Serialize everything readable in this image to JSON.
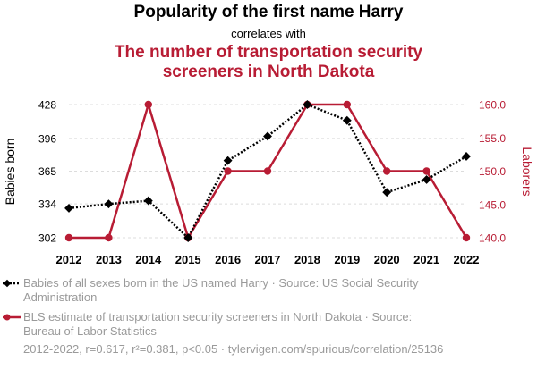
{
  "header": {
    "title": "Popularity of the first name Harry",
    "connector": "correlates with",
    "title2_line1": "The number of transportation security",
    "title2_line2": "screeners in North Dakota"
  },
  "chart_data": {
    "type": "line",
    "x": [
      2012,
      2013,
      2014,
      2015,
      2016,
      2017,
      2018,
      2019,
      2020,
      2021,
      2022
    ],
    "series": [
      {
        "name": "Babies of all sexes born in the US named Harry · Source: US Social Security Administration",
        "axis": "left",
        "color": "#000000",
        "values": [
          330,
          334,
          337,
          302,
          375,
          398,
          428,
          413,
          345,
          357,
          379
        ]
      },
      {
        "name": "BLS estimate of transportation security screeners in North Dakota · Source: Bureau of Labor Statistics",
        "axis": "right",
        "color": "#b81c34",
        "values": [
          140,
          140,
          160,
          140,
          150,
          150,
          160,
          160,
          150,
          150,
          140
        ]
      }
    ],
    "y_left": {
      "label": "Babies born",
      "ticks": [
        "302",
        "334",
        "365",
        "396",
        "428"
      ],
      "range": [
        302,
        428
      ]
    },
    "y_right": {
      "label": "Laborers",
      "ticks": [
        "140.0",
        "145.0",
        "150.0",
        "155.0",
        "160.0"
      ],
      "range": [
        140,
        160
      ]
    },
    "x_ticks": [
      "2012",
      "2013",
      "2014",
      "2015",
      "2016",
      "2017",
      "2018",
      "2019",
      "2020",
      "2021",
      "2022"
    ],
    "grid": true,
    "legend_position": "bottom"
  },
  "legend": {
    "item1_line1": "Babies of all sexes born in the US named Harry · Source: US Social Security",
    "item1_line2": "Administration",
    "item2_line1": "BLS estimate of transportation security screeners in North Dakota · Source:",
    "item2_line2": "Bureau of Labor Statistics"
  },
  "footer": "2012-2022, r=0.617, r²=0.381, p<0.05 · tylervigen.com/spurious/correlation/25136"
}
